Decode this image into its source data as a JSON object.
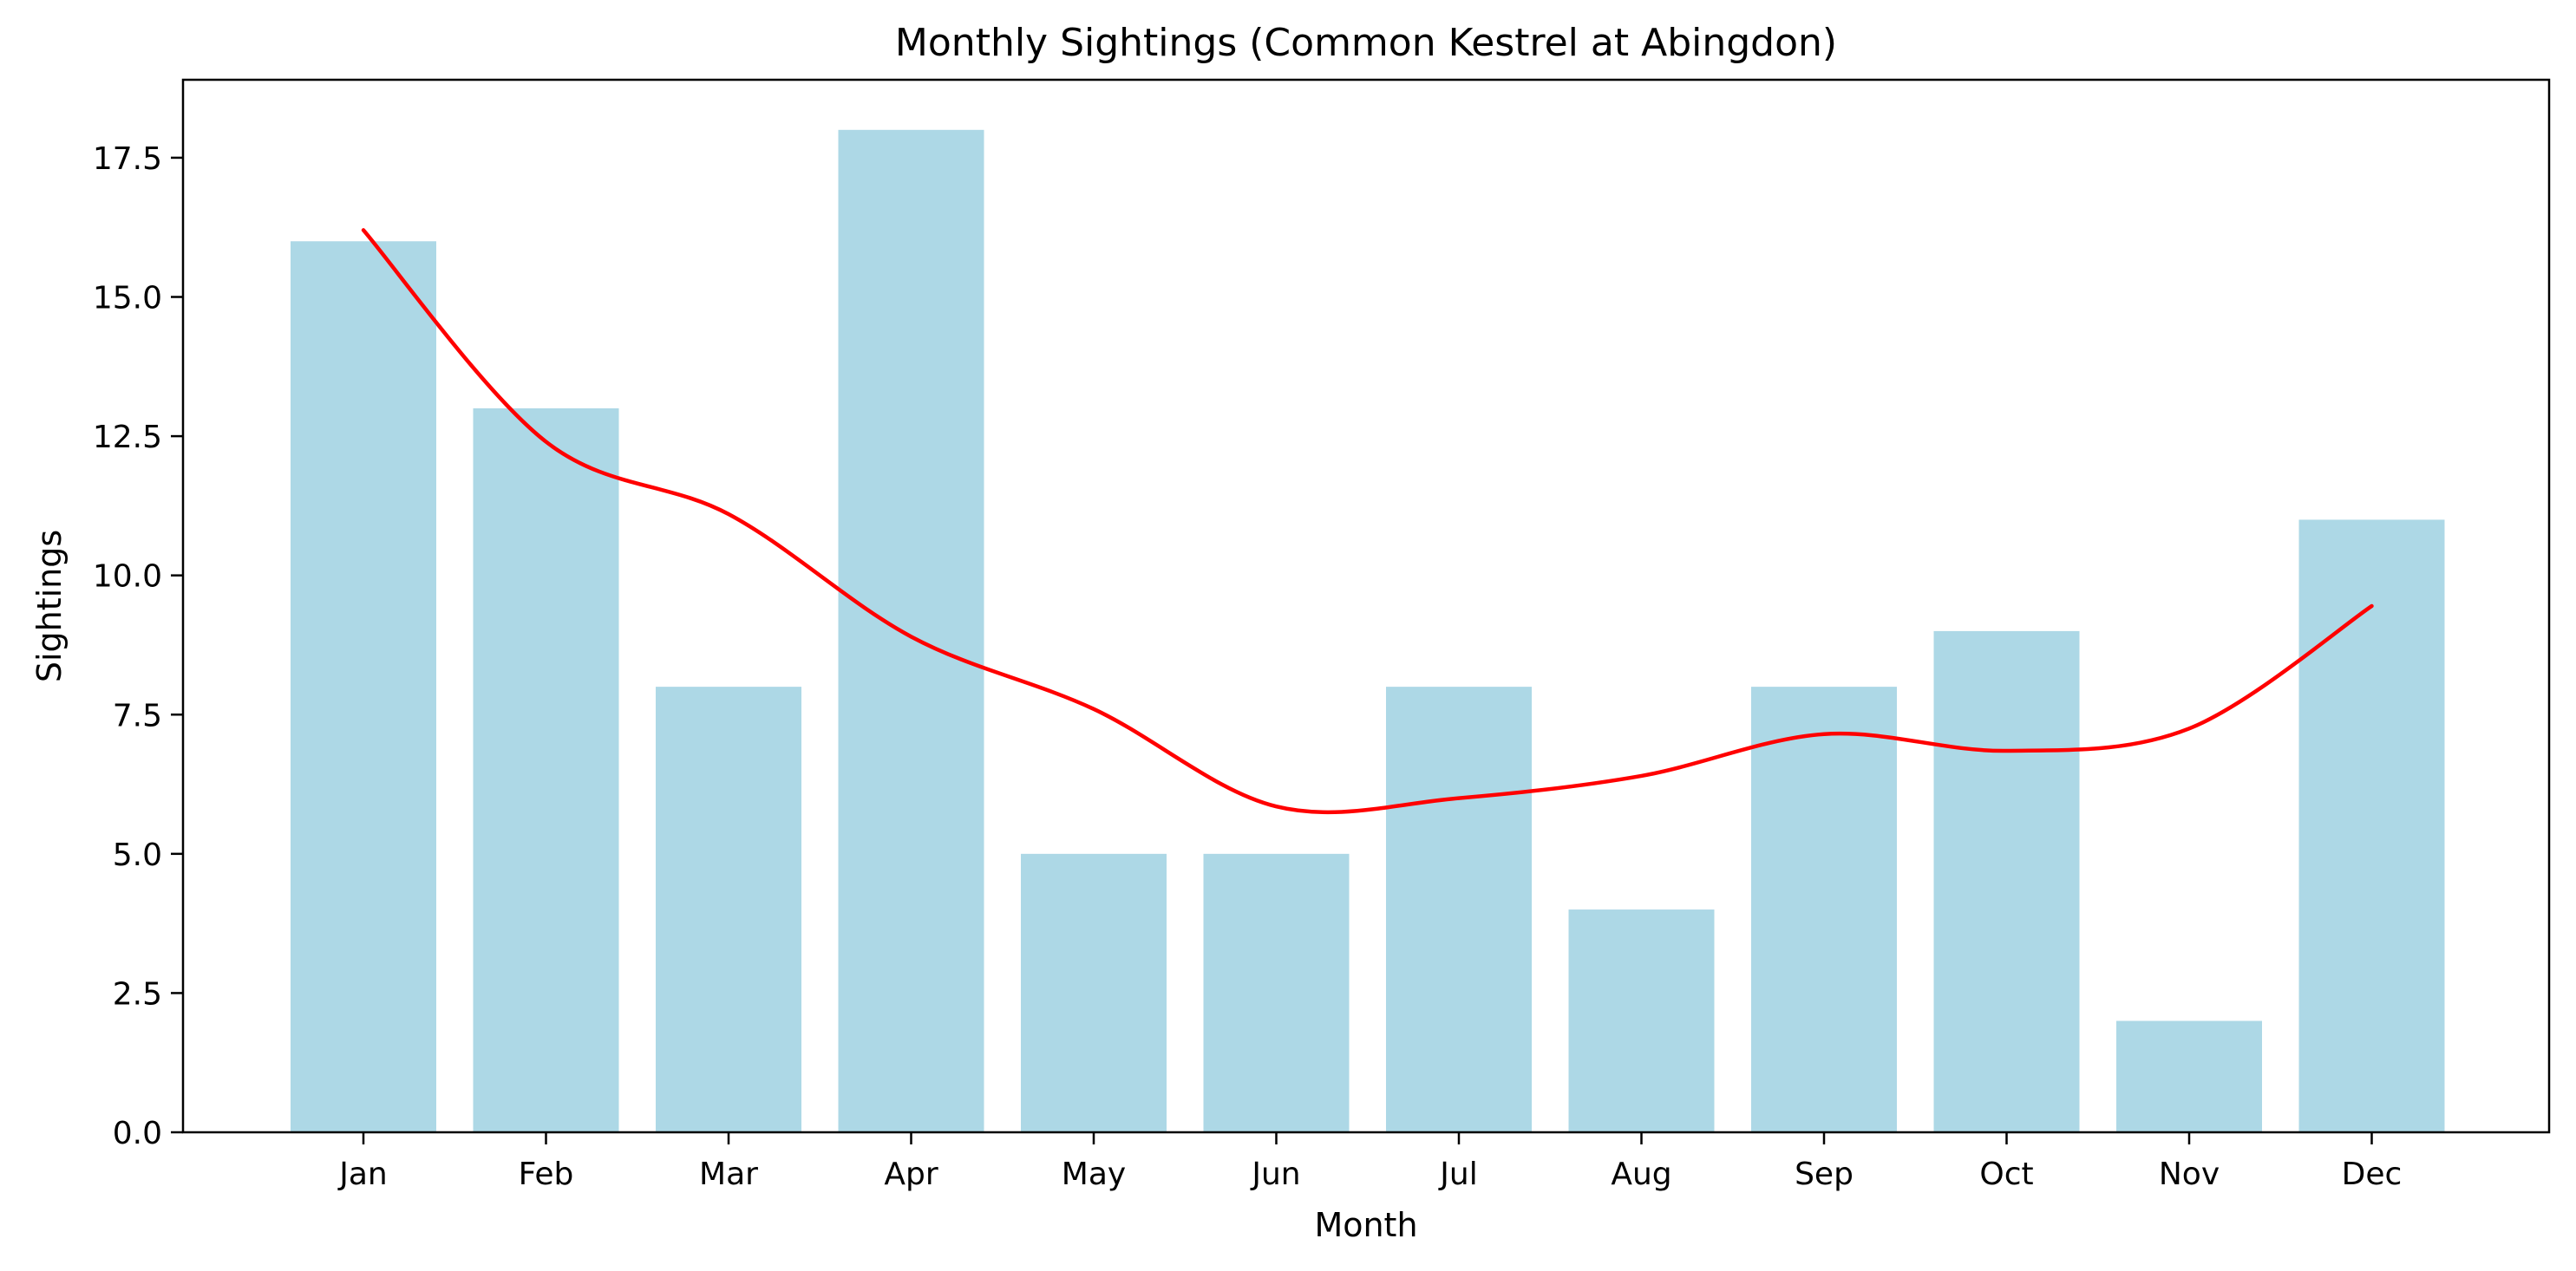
{
  "chart_data": {
    "type": "bar",
    "title": "Monthly Sightings (Common Kestrel at Abingdon)",
    "xlabel": "Month",
    "ylabel": "Sightings",
    "categories": [
      "Jan",
      "Feb",
      "Mar",
      "Apr",
      "May",
      "Jun",
      "Jul",
      "Aug",
      "Sep",
      "Oct",
      "Nov",
      "Dec"
    ],
    "values": [
      16,
      13,
      8,
      18,
      5,
      5,
      8,
      4,
      8,
      9,
      2,
      11
    ],
    "trend": [
      16.2,
      12.4,
      11.1,
      8.9,
      7.6,
      5.85,
      6.0,
      6.4,
      7.15,
      6.85,
      7.25,
      9.45
    ],
    "ylim": [
      0,
      18.9
    ],
    "yticks": [
      0.0,
      2.5,
      5.0,
      7.5,
      10.0,
      12.5,
      15.0,
      17.5
    ],
    "grid": false,
    "legend": "none",
    "bar_color": "#add8e6",
    "line_color": "#ff0000"
  }
}
